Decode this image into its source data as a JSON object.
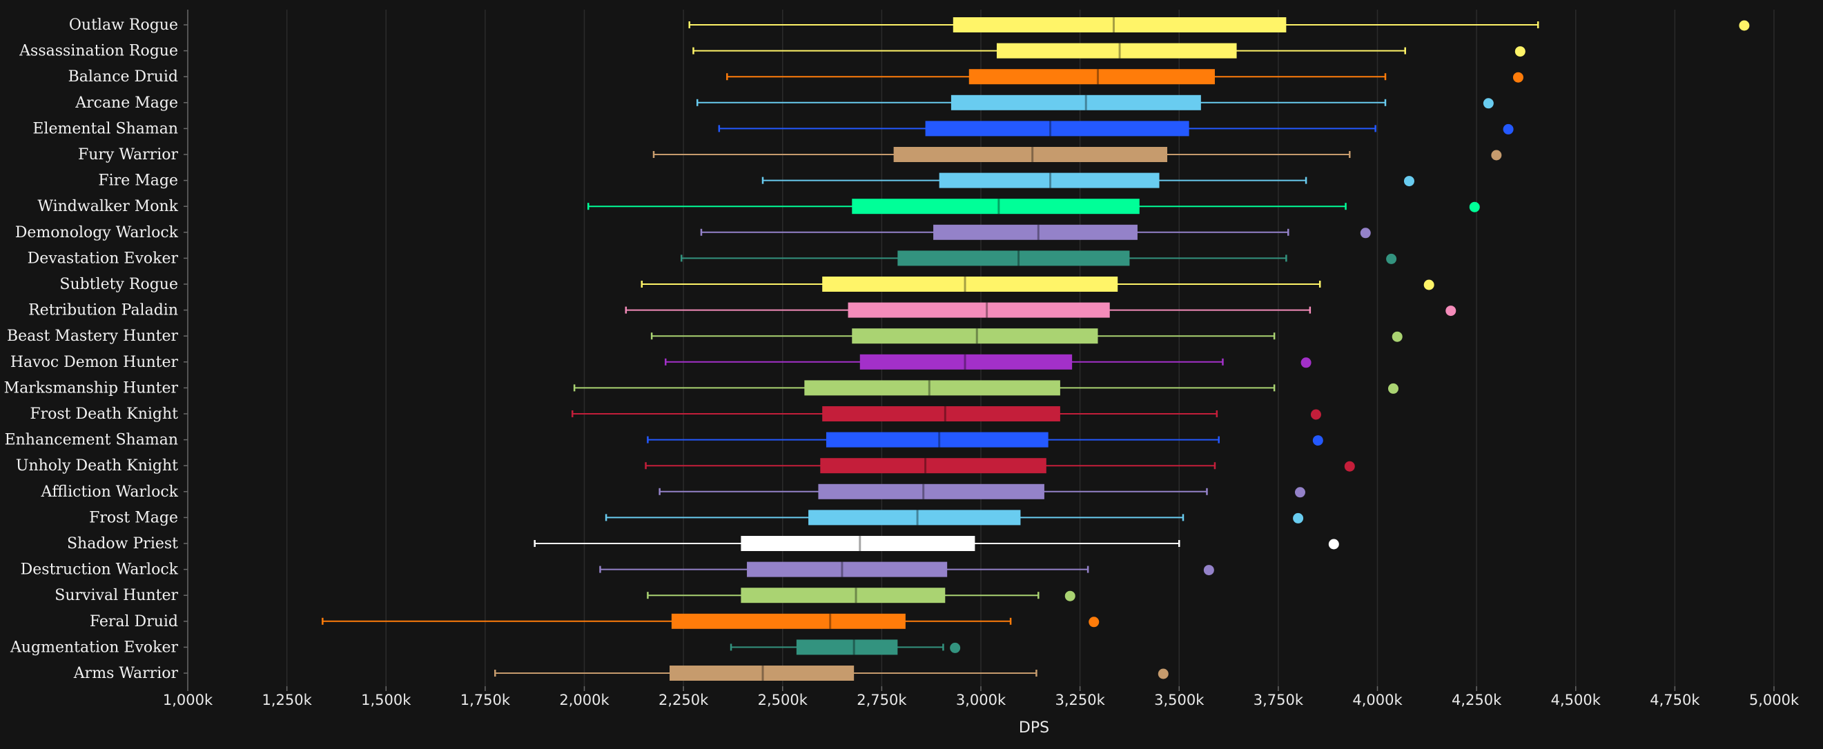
{
  "chart_data": {
    "type": "boxplot",
    "xlabel": "DPS",
    "xlim": [
      1000000,
      5000000
    ],
    "x_ticks": [
      1000000,
      1250000,
      1500000,
      1750000,
      2000000,
      2250000,
      2500000,
      2750000,
      3000000,
      3250000,
      3500000,
      3750000,
      4000000,
      4250000,
      4500000,
      4750000,
      5000000
    ],
    "x_tick_labels": [
      "1,000k",
      "1,250k",
      "1,500k",
      "1,750k",
      "2,000k",
      "2,250k",
      "2,500k",
      "2,750k",
      "3,000k",
      "3,250k",
      "3,500k",
      "3,750k",
      "4,000k",
      "4,250k",
      "4,500k",
      "4,750k",
      "5,000k"
    ],
    "grid": true,
    "series": [
      {
        "category": "Outlaw Rogue",
        "color": "#fff468",
        "min": 2265000,
        "q1": 2930000,
        "median": 3335000,
        "q3": 3770000,
        "max": 4405000,
        "outlier": 4925000
      },
      {
        "category": "Assassination Rogue",
        "color": "#fff468",
        "min": 2275000,
        "q1": 3040000,
        "median": 3350000,
        "q3": 3645000,
        "max": 4070000,
        "outlier": 4360000
      },
      {
        "category": "Balance Druid",
        "color": "#ff7c0a",
        "min": 2360000,
        "q1": 2970000,
        "median": 3295000,
        "q3": 3590000,
        "max": 4020000,
        "outlier": 4355000
      },
      {
        "category": "Arcane Mage",
        "color": "#69ccf0",
        "min": 2285000,
        "q1": 2925000,
        "median": 3265000,
        "q3": 3555000,
        "max": 4020000,
        "outlier": 4280000
      },
      {
        "category": "Elemental Shaman",
        "color": "#2459ff",
        "min": 2340000,
        "q1": 2860000,
        "median": 3175000,
        "q3": 3525000,
        "max": 3995000,
        "outlier": 4330000
      },
      {
        "category": "Fury Warrior",
        "color": "#c69b6d",
        "min": 2175000,
        "q1": 2780000,
        "median": 3130000,
        "q3": 3470000,
        "max": 3930000,
        "outlier": 4300000
      },
      {
        "category": "Fire Mage",
        "color": "#69ccf0",
        "min": 2450000,
        "q1": 2895000,
        "median": 3175000,
        "q3": 3450000,
        "max": 3820000,
        "outlier": 4080000
      },
      {
        "category": "Windwalker Monk",
        "color": "#00ff98",
        "min": 2010000,
        "q1": 2675000,
        "median": 3045000,
        "q3": 3400000,
        "max": 3920000,
        "outlier": 4245000
      },
      {
        "category": "Demonology Warlock",
        "color": "#9482c9",
        "min": 2295000,
        "q1": 2880000,
        "median": 3145000,
        "q3": 3395000,
        "max": 3775000,
        "outlier": 3970000
      },
      {
        "category": "Devastation Evoker",
        "color": "#33937f",
        "min": 2245000,
        "q1": 2790000,
        "median": 3095000,
        "q3": 3375000,
        "max": 3770000,
        "outlier": 4035000
      },
      {
        "category": "Subtlety Rogue",
        "color": "#fff468",
        "min": 2145000,
        "q1": 2600000,
        "median": 2960000,
        "q3": 3345000,
        "max": 3855000,
        "outlier": 4130000
      },
      {
        "category": "Retribution Paladin",
        "color": "#f48cba",
        "min": 2105000,
        "q1": 2665000,
        "median": 3015000,
        "q3": 3325000,
        "max": 3830000,
        "outlier": 4185000
      },
      {
        "category": "Beast Mastery Hunter",
        "color": "#aad372",
        "min": 2170000,
        "q1": 2675000,
        "median": 2990000,
        "q3": 3295000,
        "max": 3740000,
        "outlier": 4050000
      },
      {
        "category": "Havoc Demon Hunter",
        "color": "#a330c9",
        "min": 2205000,
        "q1": 2695000,
        "median": 2960000,
        "q3": 3230000,
        "max": 3610000,
        "outlier": 3820000
      },
      {
        "category": "Marksmanship Hunter",
        "color": "#aad372",
        "min": 1975000,
        "q1": 2555000,
        "median": 2870000,
        "q3": 3200000,
        "max": 3740000,
        "outlier": 4040000
      },
      {
        "category": "Frost Death Knight",
        "color": "#c41e3a",
        "min": 1970000,
        "q1": 2600000,
        "median": 2910000,
        "q3": 3200000,
        "max": 3595000,
        "outlier": 3845000
      },
      {
        "category": "Enhancement Shaman",
        "color": "#2459ff",
        "min": 2160000,
        "q1": 2610000,
        "median": 2895000,
        "q3": 3170000,
        "max": 3600000,
        "outlier": 3850000
      },
      {
        "category": "Unholy Death Knight",
        "color": "#c41e3a",
        "min": 2155000,
        "q1": 2595000,
        "median": 2860000,
        "q3": 3165000,
        "max": 3590000,
        "outlier": 3930000
      },
      {
        "category": "Affliction Warlock",
        "color": "#9482c9",
        "min": 2190000,
        "q1": 2590000,
        "median": 2855000,
        "q3": 3160000,
        "max": 3570000,
        "outlier": 3805000
      },
      {
        "category": "Frost Mage",
        "color": "#69ccf0",
        "min": 2055000,
        "q1": 2565000,
        "median": 2840000,
        "q3": 3100000,
        "max": 3510000,
        "outlier": 3800000
      },
      {
        "category": "Shadow Priest",
        "color": "#ffffff",
        "min": 1875000,
        "q1": 2395000,
        "median": 2695000,
        "q3": 2985000,
        "max": 3500000,
        "outlier": 3890000
      },
      {
        "category": "Destruction Warlock",
        "color": "#9482c9",
        "min": 2040000,
        "q1": 2410000,
        "median": 2650000,
        "q3": 2915000,
        "max": 3270000,
        "outlier": 3575000
      },
      {
        "category": "Survival Hunter",
        "color": "#aad372",
        "min": 2160000,
        "q1": 2395000,
        "median": 2685000,
        "q3": 2910000,
        "max": 3145000,
        "outlier": 3225000
      },
      {
        "category": "Feral Druid",
        "color": "#ff7c0a",
        "min": 1340000,
        "q1": 2220000,
        "median": 2620000,
        "q3": 2810000,
        "max": 3075000,
        "outlier": 3285000
      },
      {
        "category": "Augmentation Evoker",
        "color": "#33937f",
        "min": 2370000,
        "q1": 2535000,
        "median": 2680000,
        "q3": 2790000,
        "max": 2905000,
        "outlier": 2935000
      },
      {
        "category": "Arms Warrior",
        "color": "#c69b6d",
        "min": 1775000,
        "q1": 2215000,
        "median": 2450000,
        "q3": 2680000,
        "max": 3140000,
        "outlier": 3460000
      }
    ]
  }
}
